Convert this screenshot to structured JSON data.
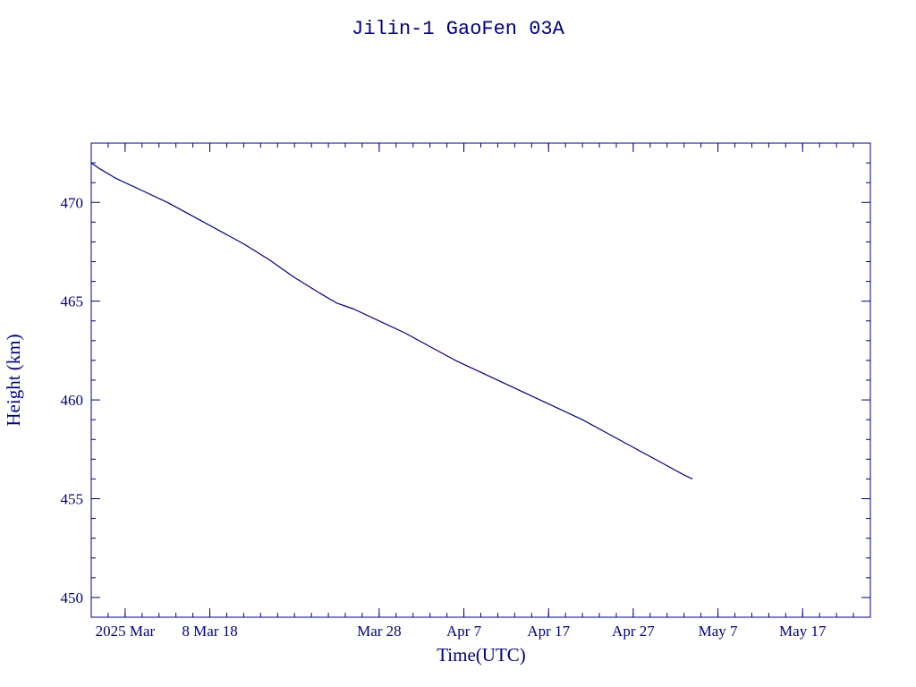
{
  "chart_data": {
    "type": "line",
    "title": "Jilin-1 GaoFen 03A",
    "xlabel": "Time(UTC)",
    "ylabel": "Height (km)",
    "x_axis_type": "date",
    "xlim": [
      "2025-02-22",
      "2025-05-25"
    ],
    "ylim": [
      449,
      473
    ],
    "y_ticks": [
      450,
      455,
      460,
      465,
      470
    ],
    "x_ticks": [
      {
        "date": "2025-02-26",
        "label": "2025 Mar"
      },
      {
        "date": "2025-03-08",
        "label": "8 Mar 18"
      },
      {
        "date": "2025-03-28",
        "label": "Mar 28"
      },
      {
        "date": "2025-04-07",
        "label": "Apr  7"
      },
      {
        "date": "2025-04-17",
        "label": "Apr 17"
      },
      {
        "date": "2025-04-27",
        "label": "Apr 27"
      },
      {
        "date": "2025-05-07",
        "label": "May  7"
      },
      {
        "date": "2025-05-17",
        "label": "May 17"
      }
    ],
    "grid": false,
    "color": "#000080",
    "series": [
      {
        "x": [
          "2025-02-22",
          "2025-02-23",
          "2025-02-25",
          "2025-02-28",
          "2025-03-03",
          "2025-03-06",
          "2025-03-09",
          "2025-03-12",
          "2025-03-15",
          "2025-03-18",
          "2025-03-21",
          "2025-03-23",
          "2025-03-25",
          "2025-03-28",
          "2025-03-31",
          "2025-04-03",
          "2025-04-06",
          "2025-04-09",
          "2025-04-12",
          "2025-04-15",
          "2025-04-18",
          "2025-04-21",
          "2025-04-24",
          "2025-04-27",
          "2025-04-30",
          "2025-05-03",
          "2025-05-04"
        ],
        "y": [
          472.0,
          471.7,
          471.2,
          470.6,
          470.0,
          469.3,
          468.6,
          467.9,
          467.1,
          466.2,
          465.4,
          464.9,
          464.6,
          464.0,
          463.4,
          462.7,
          462.0,
          461.4,
          460.8,
          460.2,
          459.6,
          459.0,
          458.3,
          457.6,
          456.9,
          456.2,
          456.0
        ]
      }
    ]
  }
}
